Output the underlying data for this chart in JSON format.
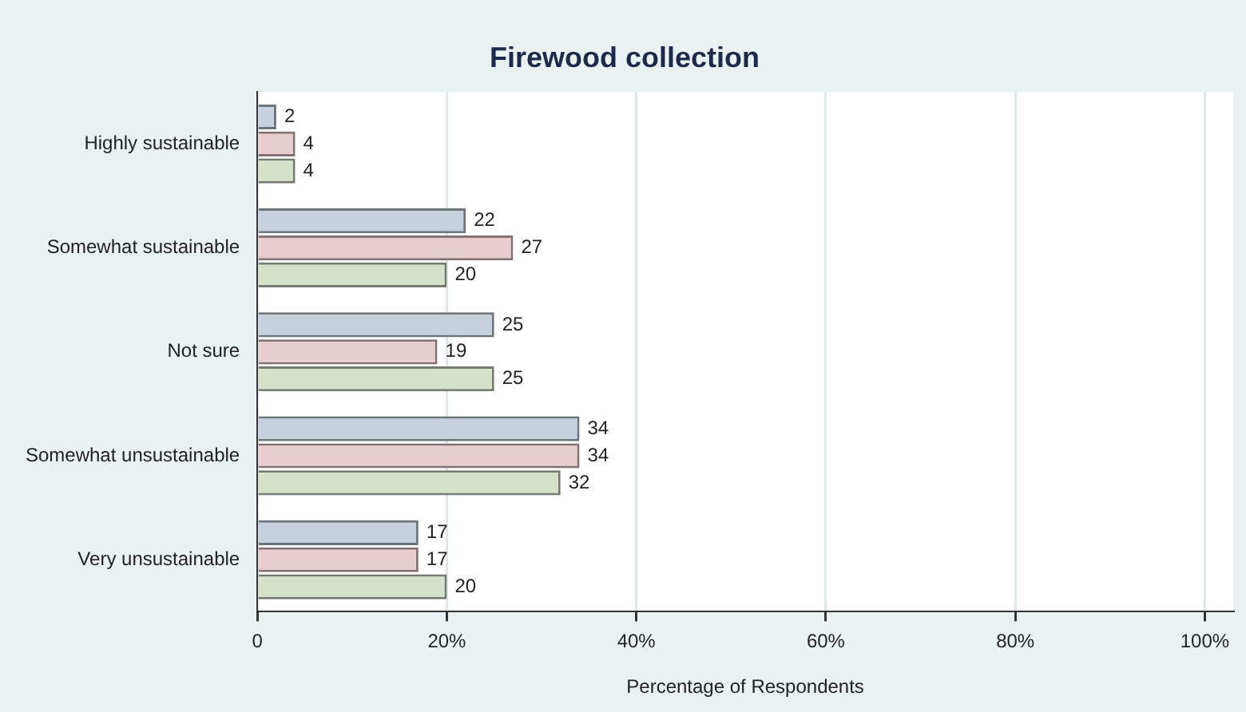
{
  "chart_data": {
    "type": "bar",
    "orientation": "horizontal",
    "title": "Firewood collection",
    "xlabel": "Percentage of Respondents",
    "categories": [
      "Highly sustainable",
      "Somewhat sustainable",
      "Not sure",
      "Somewhat unsustainable",
      "Very unsustainable"
    ],
    "series": [
      {
        "color": "#c6d1dd",
        "values": [
          2,
          22,
          25,
          34,
          17
        ]
      },
      {
        "color": "#e8cdd0",
        "values": [
          4,
          27,
          19,
          34,
          17
        ]
      },
      {
        "color": "#d5e1c9",
        "values": [
          4,
          20,
          25,
          32,
          20
        ]
      }
    ],
    "xlim": [
      0,
      103
    ],
    "xticks": [
      0,
      {
        "value": 20,
        "label": "20%"
      },
      {
        "value": 40,
        "label": "40%"
      },
      {
        "value": 60,
        "label": "60%"
      },
      {
        "value": 80,
        "label": "80%"
      },
      {
        "value": 100,
        "label": "100%"
      }
    ],
    "grid": "x",
    "legend": false,
    "data_labels": true
  }
}
